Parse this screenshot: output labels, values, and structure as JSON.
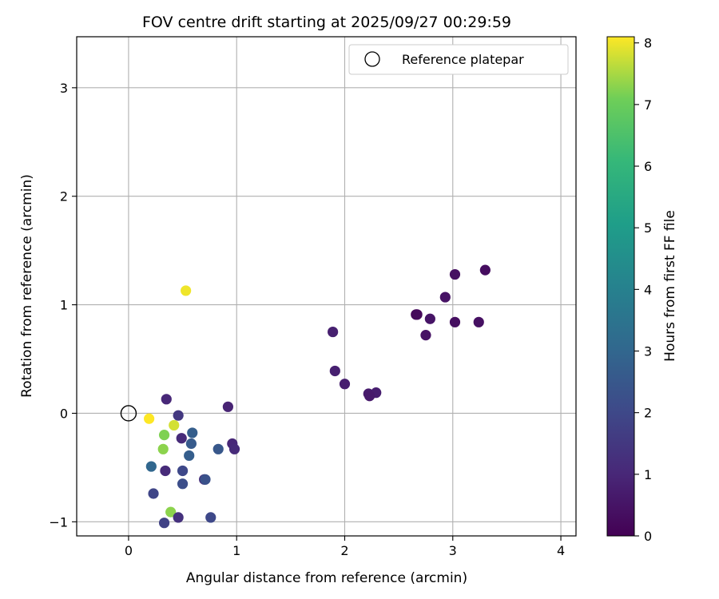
{
  "chart_data": {
    "type": "scatter",
    "title": "FOV centre drift starting at 2025/09/27 00:29:59",
    "xlabel": "Angular distance from reference (arcmin)",
    "ylabel": "Rotation from reference (arcmin)",
    "xlim": [
      -0.48,
      4.14
    ],
    "ylim": [
      -1.13,
      3.47
    ],
    "xticks": [
      0,
      1,
      2,
      3,
      4
    ],
    "yticks": [
      -1,
      0,
      1,
      2,
      3
    ],
    "xtick_labels": [
      "0",
      "1",
      "2",
      "3",
      "4"
    ],
    "ytick_labels": [
      "−1",
      "0",
      "1",
      "2",
      "3"
    ],
    "grid": true,
    "legend": {
      "position": "top-right",
      "label": "Reference platepar"
    },
    "reference_point": {
      "x": 0,
      "y": 0
    },
    "colorbar": {
      "label": "Hours from first FF file",
      "min": 0,
      "max": 8.1,
      "ticks": [
        0,
        1,
        2,
        3,
        4,
        5,
        6,
        7,
        8
      ],
      "tick_labels": [
        "0",
        "1",
        "2",
        "3",
        "4",
        "5",
        "6",
        "7",
        "8"
      ]
    },
    "colors": {
      "axis": "#000000",
      "grid": "#b0b0b0",
      "ref_marker": "#000000"
    },
    "points": [
      {
        "x": 3.3,
        "y": 1.32,
        "h": 0.3
      },
      {
        "x": 3.02,
        "y": 1.28,
        "h": 0.4
      },
      {
        "x": 2.93,
        "y": 1.07,
        "h": 0.45
      },
      {
        "x": 3.02,
        "y": 0.84,
        "h": 0.35
      },
      {
        "x": 3.24,
        "y": 0.84,
        "h": 0.4
      },
      {
        "x": 2.66,
        "y": 0.91,
        "h": 0.1
      },
      {
        "x": 2.67,
        "y": 0.91,
        "h": 0.2
      },
      {
        "x": 2.79,
        "y": 0.87,
        "h": 0.5
      },
      {
        "x": 2.75,
        "y": 0.72,
        "h": 0.45
      },
      {
        "x": 1.89,
        "y": 0.75,
        "h": 0.8
      },
      {
        "x": 1.91,
        "y": 0.39,
        "h": 0.8
      },
      {
        "x": 2.0,
        "y": 0.27,
        "h": 0.75
      },
      {
        "x": 2.22,
        "y": 0.18,
        "h": 0.7
      },
      {
        "x": 2.29,
        "y": 0.19,
        "h": 0.75
      },
      {
        "x": 2.23,
        "y": 0.16,
        "h": 0.65
      },
      {
        "x": 0.53,
        "y": 1.13,
        "h": 8.0
      },
      {
        "x": 0.35,
        "y": 0.13,
        "h": 1.0
      },
      {
        "x": 0.92,
        "y": 0.06,
        "h": 0.9
      },
      {
        "x": 0.46,
        "y": -0.02,
        "h": 1.5
      },
      {
        "x": 0.19,
        "y": -0.05,
        "h": 8.1
      },
      {
        "x": 0.42,
        "y": -0.11,
        "h": 7.8
      },
      {
        "x": 0.33,
        "y": -0.2,
        "h": 7.2
      },
      {
        "x": 0.49,
        "y": -0.23,
        "h": 1.1
      },
      {
        "x": 0.59,
        "y": -0.18,
        "h": 2.7
      },
      {
        "x": 0.58,
        "y": -0.28,
        "h": 2.6
      },
      {
        "x": 0.96,
        "y": -0.28,
        "h": 1.0
      },
      {
        "x": 0.98,
        "y": -0.33,
        "h": 1.1
      },
      {
        "x": 0.83,
        "y": -0.33,
        "h": 2.5
      },
      {
        "x": 0.32,
        "y": -0.33,
        "h": 7.3
      },
      {
        "x": 0.56,
        "y": -0.39,
        "h": 2.7
      },
      {
        "x": 0.21,
        "y": -0.49,
        "h": 3.0
      },
      {
        "x": 0.34,
        "y": -0.53,
        "h": 1.1
      },
      {
        "x": 0.5,
        "y": -0.53,
        "h": 2.0
      },
      {
        "x": 0.7,
        "y": -0.61,
        "h": 1.2
      },
      {
        "x": 0.71,
        "y": -0.61,
        "h": 2.3
      },
      {
        "x": 0.5,
        "y": -0.65,
        "h": 2.2
      },
      {
        "x": 0.23,
        "y": -0.74,
        "h": 1.9
      },
      {
        "x": 0.39,
        "y": -0.91,
        "h": 7.3
      },
      {
        "x": 0.46,
        "y": -0.96,
        "h": 1.3
      },
      {
        "x": 0.76,
        "y": -0.96,
        "h": 2.0
      },
      {
        "x": 0.33,
        "y": -1.01,
        "h": 1.8
      }
    ]
  }
}
